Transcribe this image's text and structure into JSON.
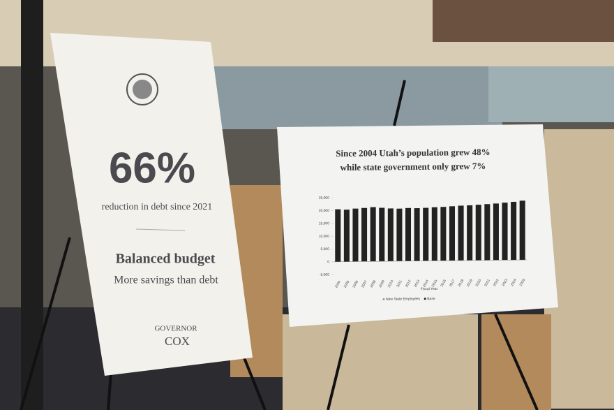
{
  "left_poster": {
    "stat": "66%",
    "stat_caption": "reduction in debt since 2021",
    "heading": "Balanced budget",
    "subheading": "More savings than debt",
    "signature_line1": "GOVERNOR",
    "signature_line2": "COX"
  },
  "chart_data": {
    "type": "bar",
    "title_line1": "Since 2004 Utah’s population grew 48%",
    "title_line2": "while state government only grew 7%",
    "x_label": "Fiscal Year",
    "categories": [
      "2004",
      "2005",
      "2006",
      "2007",
      "2008",
      "2009",
      "2010",
      "2011",
      "2012",
      "2013",
      "2014",
      "2015",
      "2016",
      "2017",
      "2018",
      "2019",
      "2020",
      "2021",
      "2022",
      "2023",
      "2024",
      "2025"
    ],
    "series": [
      {
        "name": "Base",
        "color": "#222222",
        "values": [
          20500,
          20300,
          20700,
          20900,
          21200,
          20900,
          20600,
          20500,
          20700,
          20600,
          20700,
          20900,
          21000,
          21200,
          21400,
          21500,
          21700,
          21900,
          22100,
          22400,
          22700,
          23100
        ]
      }
    ],
    "legend_items": [
      "New State Employees",
      "Base"
    ],
    "ylim": [
      -5000,
      25000
    ],
    "yticks": [
      {
        "value": -5000,
        "label": "-5,000"
      },
      0,
      {
        "value": 5000,
        "label": "5,000"
      },
      {
        "value": 10000,
        "label": "10,000"
      },
      {
        "value": 15000,
        "label": "15,000"
      },
      {
        "value": 20000,
        "label": "20,000"
      },
      {
        "value": 25000,
        "label": "25,000"
      }
    ]
  }
}
